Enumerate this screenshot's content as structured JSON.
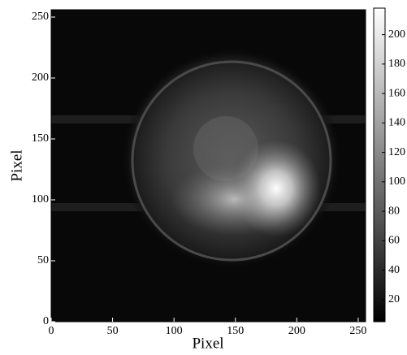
{
  "chart_data": {
    "type": "heatmap",
    "xlabel": "Pixel",
    "ylabel": "Pixel",
    "xlim": [
      0,
      256
    ],
    "ylim": [
      0,
      256
    ],
    "xticks": [
      0,
      50,
      100,
      150,
      200,
      250
    ],
    "yticks": [
      0,
      50,
      100,
      150,
      200,
      250
    ],
    "colorbar": {
      "lim": [
        5,
        218
      ],
      "ticks": [
        20,
        40,
        60,
        80,
        100,
        120,
        140,
        160,
        180,
        200
      ],
      "colormap": "gray"
    }
  }
}
